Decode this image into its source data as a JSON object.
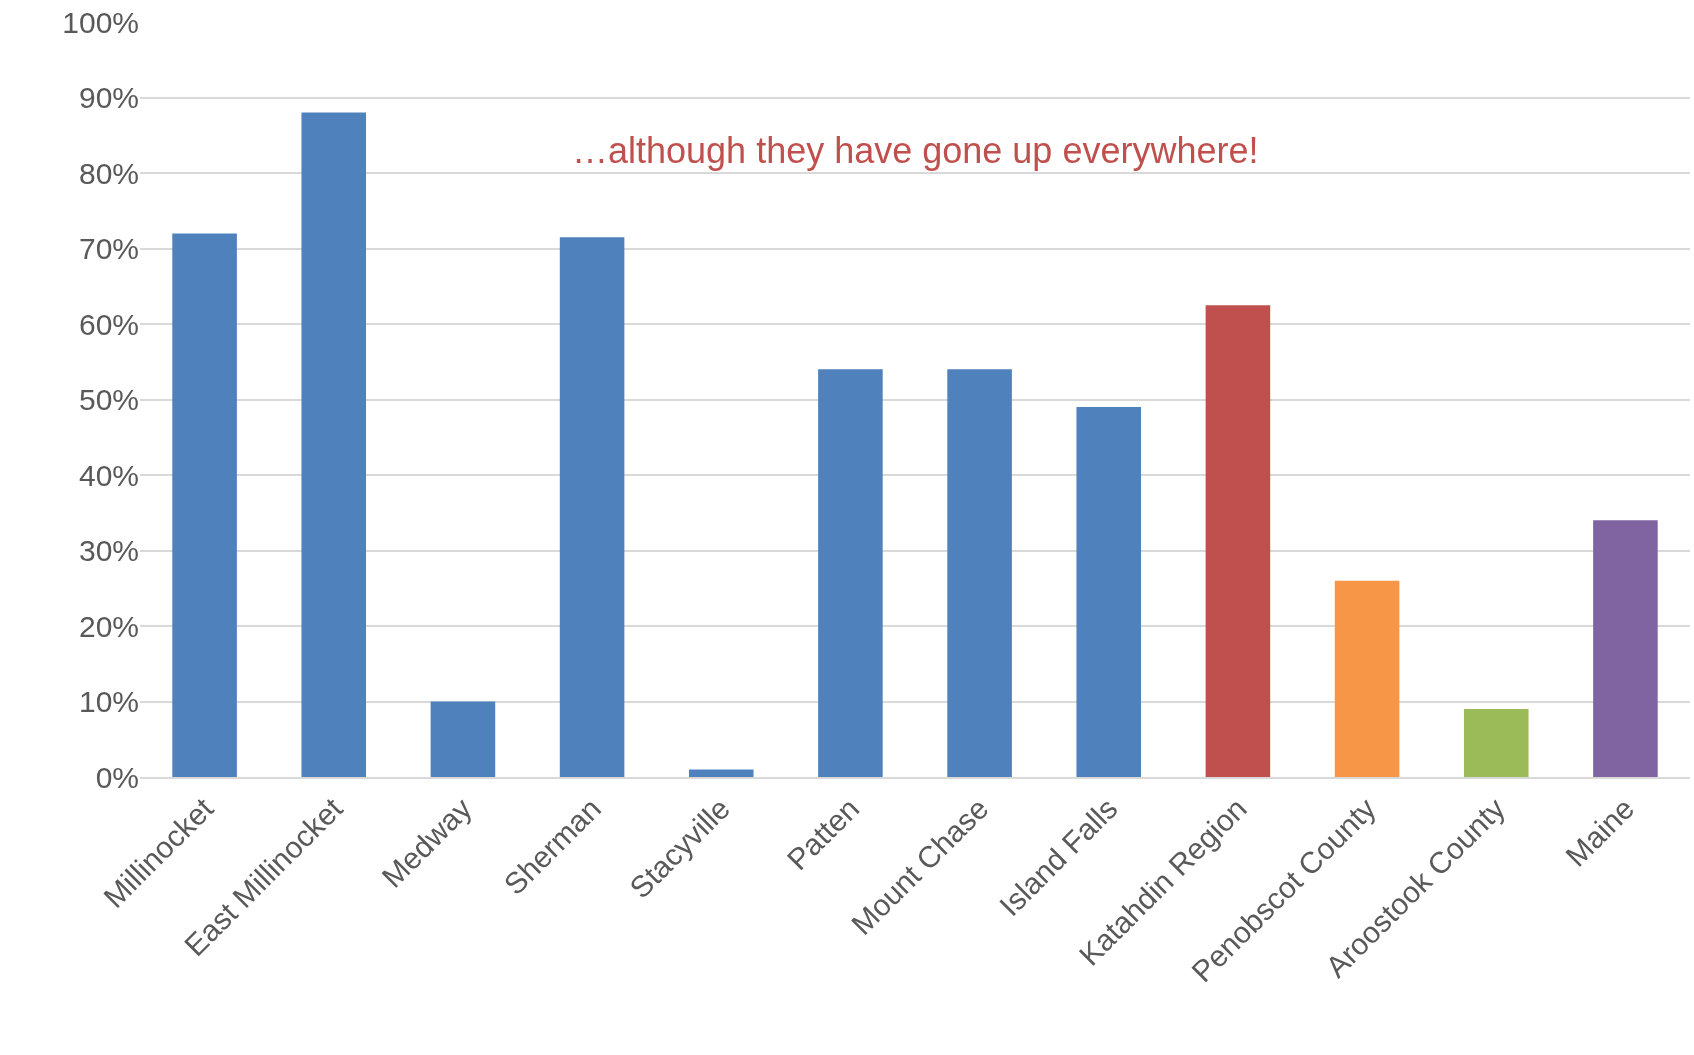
{
  "chart_data": {
    "type": "bar",
    "categories": [
      "Millinocket",
      "East Millinocket",
      "Medway",
      "Sherman",
      "Stacyville",
      "Patten",
      "Mount Chase",
      "Island Falls",
      "Katahdin Region",
      "Penobscot County",
      "Aroostook County",
      "Maine"
    ],
    "values": [
      72,
      88,
      10,
      71.5,
      1,
      54,
      54,
      49,
      62.5,
      26,
      9,
      34
    ],
    "colors": [
      "#4f81bd",
      "#4f81bd",
      "#4f81bd",
      "#4f81bd",
      "#4f81bd",
      "#4f81bd",
      "#4f81bd",
      "#4f81bd",
      "#c0504d",
      "#f79646",
      "#9bbb59",
      "#8064a2"
    ],
    "ylim": [
      0,
      100
    ],
    "yticks": [
      {
        "value": 0,
        "label": "0%"
      },
      {
        "value": 10,
        "label": "10%"
      },
      {
        "value": 20,
        "label": "20%"
      },
      {
        "value": 30,
        "label": "30%"
      },
      {
        "value": 40,
        "label": "40%"
      },
      {
        "value": 50,
        "label": "50%"
      },
      {
        "value": 60,
        "label": "60%"
      },
      {
        "value": 70,
        "label": "70%"
      },
      {
        "value": 80,
        "label": "80%"
      },
      {
        "value": 90,
        "label": "90%"
      },
      {
        "value": 100,
        "label": "100%"
      }
    ],
    "grid": "y",
    "annotations": [
      "…although they have gone up everywhere!"
    ]
  }
}
